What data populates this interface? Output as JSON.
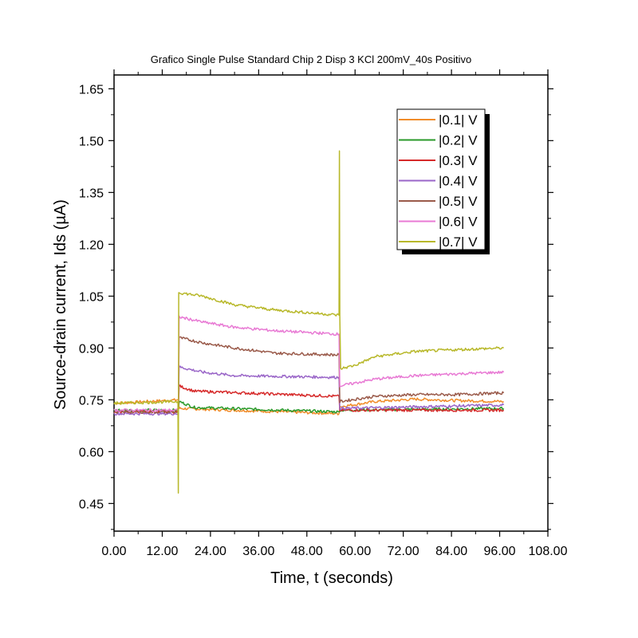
{
  "chart_data": {
    "type": "line",
    "title": "Grafico Single Pulse Standard Chip 2 Disp 3 KCl 200mV_40s Positivo",
    "xlabel": "Time, t (seconds)",
    "ylabel": "Source-drain current, Ids (µA)",
    "xlim": [
      0,
      108
    ],
    "ylim": [
      0.37,
      1.69
    ],
    "x_ticks": [
      "0.00",
      "12.00",
      "24.00",
      "36.00",
      "48.00",
      "60.00",
      "72.00",
      "84.00",
      "96.00",
      "108.00"
    ],
    "y_ticks": [
      "0.45",
      "0.60",
      "0.75",
      "0.90",
      "1.05",
      "1.20",
      "1.35",
      "1.50",
      "1.65"
    ],
    "legend_position": "top-right",
    "grid": false,
    "series": [
      {
        "name": "|0.1| V",
        "color": "#f08c2a",
        "x": [
          0,
          16,
          16.2,
          56,
          56.2,
          65,
          75,
          85,
          97
        ],
        "y": [
          0.74,
          0.75,
          0.725,
          0.71,
          0.73,
          0.745,
          0.752,
          0.748,
          0.745
        ]
      },
      {
        "name": "|0.2| V",
        "color": "#2a9a2a",
        "x": [
          0,
          16,
          16.2,
          20,
          56,
          56.2,
          97
        ],
        "y": [
          0.72,
          0.72,
          0.745,
          0.728,
          0.715,
          0.72,
          0.725
        ]
      },
      {
        "name": "|0.3| V",
        "color": "#d62a2a",
        "x": [
          0,
          16,
          16.2,
          20,
          56,
          56.2,
          97
        ],
        "y": [
          0.715,
          0.715,
          0.79,
          0.775,
          0.76,
          0.72,
          0.72
        ]
      },
      {
        "name": "|0.4| V",
        "color": "#9a66c8",
        "x": [
          0,
          16,
          16.2,
          22,
          30,
          56,
          56.2,
          97
        ],
        "y": [
          0.71,
          0.71,
          0.845,
          0.83,
          0.82,
          0.815,
          0.725,
          0.735
        ]
      },
      {
        "name": "|0.5| V",
        "color": "#9a5a4a",
        "x": [
          0,
          16,
          16.2,
          22,
          30,
          40,
          56,
          56.2,
          65,
          75,
          85,
          97
        ],
        "y": [
          0.715,
          0.715,
          0.93,
          0.915,
          0.9,
          0.885,
          0.88,
          0.745,
          0.76,
          0.765,
          0.765,
          0.77
        ]
      },
      {
        "name": "|0.6| V",
        "color": "#e87ad4",
        "x": [
          0,
          16,
          16.2,
          22,
          30,
          40,
          56,
          56.2,
          65,
          75,
          85,
          97
        ],
        "y": [
          0.72,
          0.72,
          0.99,
          0.975,
          0.96,
          0.95,
          0.94,
          0.79,
          0.81,
          0.82,
          0.825,
          0.83
        ]
      },
      {
        "name": "|0.7| V",
        "color": "#b8b82a",
        "x": [
          0,
          15.9,
          16,
          16.1,
          16.3,
          22,
          30,
          40,
          56,
          56.1,
          56.2,
          56.4,
          60,
          65,
          75,
          85,
          97
        ],
        "y": [
          0.74,
          0.745,
          0.48,
          1.06,
          1.06,
          1.05,
          1.025,
          1.01,
          0.995,
          1.47,
          0.99,
          0.84,
          0.85,
          0.875,
          0.89,
          0.895,
          0.9
        ]
      }
    ]
  }
}
